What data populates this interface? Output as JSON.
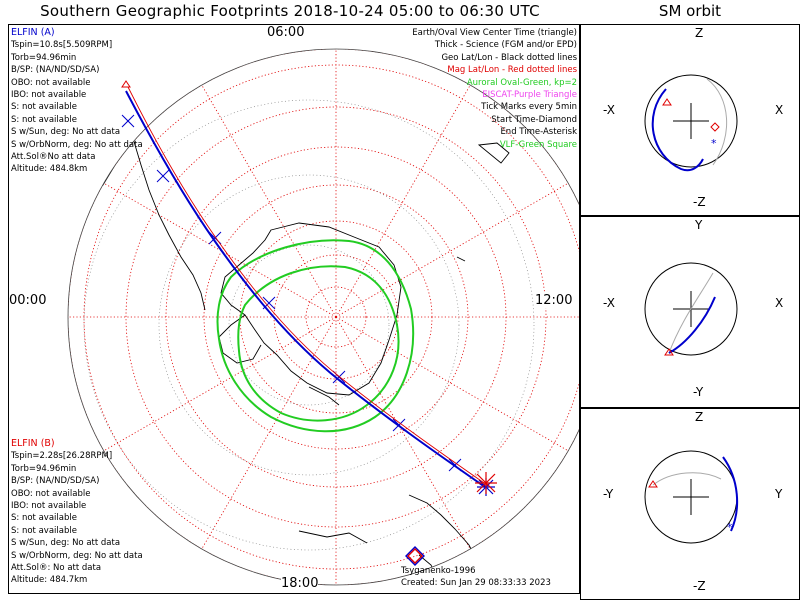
{
  "title": "Southern Geographic Footprints 2018-10-24 05:00 to 06:30 UTC",
  "sm_title": "SM orbit",
  "time_labels": {
    "top": "06:00",
    "left": "00:00",
    "right": "12:00",
    "bottom": "18:00"
  },
  "elfin_a": {
    "name": "ELFIN (A)",
    "lines": [
      "Tspin=10.8s[5.509RPM]",
      "Torb=94.96min",
      "B/SP: (NA/ND/SD/SA)",
      "OBO: not available",
      "IBO: not available",
      "S: not available",
      "S: not available",
      "S w/Sun, deg: No att data",
      "S w/OrbNorm, deg: No att data",
      "Att.Sol®No att data",
      "Altitude: 484.8km"
    ]
  },
  "elfin_b": {
    "name": "ELFIN (B)",
    "lines": [
      "Tspin=2.28s[26.28RPM]",
      "Torb=94.96min",
      "B/SP: (NA/ND/SD/SA)",
      "OBO: not available",
      "IBO: not available",
      "S: not available",
      "S: not available",
      "S w/Sun, deg: No att data",
      "S w/OrbNorm, deg: No att data",
      "Att.Sol®: No att data",
      "Altitude: 484.7km"
    ]
  },
  "legend": [
    {
      "text": "Earth/Oval View Center Time (triangle)",
      "color": "#000000"
    },
    {
      "text": "Thick - Science (FGM and/or EPD)",
      "color": "#000000"
    },
    {
      "text": "Geo Lat/Lon - Black dotted lines",
      "color": "#000000"
    },
    {
      "text": "Mag Lat/Lon - Red dotted lines",
      "color": "#e00000"
    },
    {
      "text": "Auroral Oval-Green, kp=2",
      "color": "#22cc22"
    },
    {
      "text": "EISCAT-Purple Triangle",
      "color": "#ee44ee"
    },
    {
      "text": "Tick Marks every 5min",
      "color": "#000000"
    },
    {
      "text": "Start Time-Diamond",
      "color": "#000000"
    },
    {
      "text": "End Time-Asterisk",
      "color": "#000000"
    },
    {
      "text": "VLF-Green Square",
      "color": "#22cc22"
    }
  ],
  "credits": {
    "model": "Tsyganenko-1996",
    "created": "Created: Sun Jan 29 08:33:33 2023"
  },
  "sm_panels": [
    {
      "top": "Z",
      "bottom": "-Z",
      "left": "-X",
      "right": "X"
    },
    {
      "top": "Y",
      "bottom": "-Y",
      "left": "-X",
      "right": "X"
    },
    {
      "top": "Z",
      "bottom": "-Z",
      "left": "-Y",
      "right": "Y"
    }
  ],
  "colors": {
    "track_a": "#0000cc",
    "track_b": "#e00000",
    "oval": "#22cc22",
    "grid_mag": "#e00000"
  }
}
